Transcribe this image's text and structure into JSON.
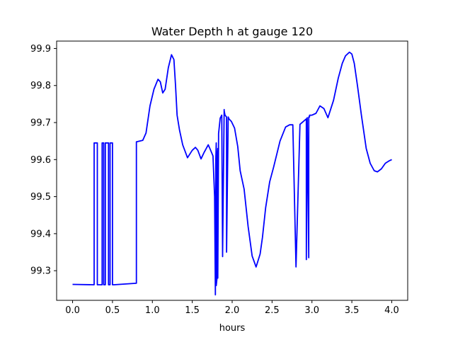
{
  "chart_data": {
    "type": "line",
    "title": "Water Depth h at gauge 120",
    "xlabel": "hours",
    "ylabel": "",
    "xlim": [
      -0.2,
      4.2
    ],
    "ylim": [
      99.22,
      99.92
    ],
    "xticks": [
      {
        "value": 0.0,
        "label": "0.0"
      },
      {
        "value": 0.5,
        "label": "0.5"
      },
      {
        "value": 1.0,
        "label": "1.0"
      },
      {
        "value": 1.5,
        "label": "1.5"
      },
      {
        "value": 2.0,
        "label": "2.0"
      },
      {
        "value": 2.5,
        "label": "2.5"
      },
      {
        "value": 3.0,
        "label": "3.0"
      },
      {
        "value": 3.5,
        "label": "3.5"
      },
      {
        "value": 4.0,
        "label": "4.0"
      }
    ],
    "yticks": [
      {
        "value": 99.3,
        "label": "99.3"
      },
      {
        "value": 99.4,
        "label": "99.4"
      },
      {
        "value": 99.5,
        "label": "99.5"
      },
      {
        "value": 99.6,
        "label": "99.6"
      },
      {
        "value": 99.7,
        "label": "99.7"
      },
      {
        "value": 99.8,
        "label": "99.8"
      },
      {
        "value": 99.9,
        "label": "99.9"
      }
    ],
    "grid": false,
    "series": [
      {
        "color": "#0000ff",
        "x": [
          0.0,
          0.27,
          0.27,
          0.31,
          0.31,
          0.37,
          0.37,
          0.39,
          0.39,
          0.41,
          0.41,
          0.45,
          0.45,
          0.47,
          0.47,
          0.5,
          0.5,
          0.52,
          0.52,
          0.8,
          0.8,
          0.88,
          0.92,
          0.97,
          1.02,
          1.07,
          1.1,
          1.13,
          1.16,
          1.2,
          1.24,
          1.27,
          1.29,
          1.31,
          1.34,
          1.38,
          1.44,
          1.5,
          1.54,
          1.57,
          1.61,
          1.65,
          1.7,
          1.73,
          1.76,
          1.78,
          1.79,
          1.795,
          1.8,
          1.8,
          1.81,
          1.81,
          1.82,
          1.82,
          1.83,
          1.83,
          1.85,
          1.87,
          1.88,
          1.88,
          1.9,
          1.9,
          1.91,
          1.93,
          1.93,
          1.95,
          1.95,
          1.96,
          1.99,
          2.03,
          2.07,
          2.1,
          2.15,
          2.2,
          2.25,
          2.3,
          2.35,
          2.38,
          2.42,
          2.47,
          2.52,
          2.6,
          2.67,
          2.72,
          2.76,
          2.8,
          2.8,
          2.85,
          2.85,
          2.93,
          2.93,
          2.94,
          2.94,
          2.96,
          2.96,
          2.97,
          2.97,
          3.0,
          3.05,
          3.1,
          3.15,
          3.2,
          3.27,
          3.33,
          3.38,
          3.42,
          3.47,
          3.5,
          3.53,
          3.57,
          3.62,
          3.68,
          3.73,
          3.78,
          3.82,
          3.87,
          3.92,
          3.97,
          4.0
        ],
        "y": [
          99.263,
          99.262,
          99.645,
          99.645,
          99.262,
          99.262,
          99.645,
          99.645,
          99.262,
          99.262,
          99.645,
          99.645,
          99.262,
          99.262,
          99.645,
          99.645,
          99.262,
          99.262,
          99.262,
          99.266,
          99.648,
          99.652,
          99.672,
          99.745,
          99.79,
          99.817,
          99.81,
          99.78,
          99.79,
          99.848,
          99.883,
          99.87,
          99.8,
          99.72,
          99.68,
          99.64,
          99.605,
          99.625,
          99.633,
          99.625,
          99.602,
          99.62,
          99.64,
          99.625,
          99.61,
          99.5,
          99.235,
          99.6,
          99.645,
          99.26,
          99.28,
          99.6,
          99.63,
          99.28,
          99.66,
          99.67,
          99.712,
          99.72,
          99.338,
          99.345,
          99.735,
          99.732,
          99.72,
          99.715,
          99.35,
          99.715,
          99.715,
          99.71,
          99.703,
          99.685,
          99.635,
          99.57,
          99.52,
          99.42,
          99.34,
          99.31,
          99.345,
          99.39,
          99.47,
          99.54,
          99.58,
          99.65,
          99.688,
          99.694,
          99.694,
          99.31,
          99.31,
          99.695,
          99.695,
          99.71,
          99.33,
          99.713,
          99.713,
          99.335,
          99.715,
          99.715,
          99.72,
          99.72,
          99.725,
          99.745,
          99.738,
          99.713,
          99.76,
          99.82,
          99.86,
          99.88,
          99.89,
          99.885,
          99.86,
          99.8,
          99.72,
          99.63,
          99.59,
          99.57,
          99.567,
          99.575,
          99.59,
          99.597,
          99.6
        ]
      }
    ]
  }
}
